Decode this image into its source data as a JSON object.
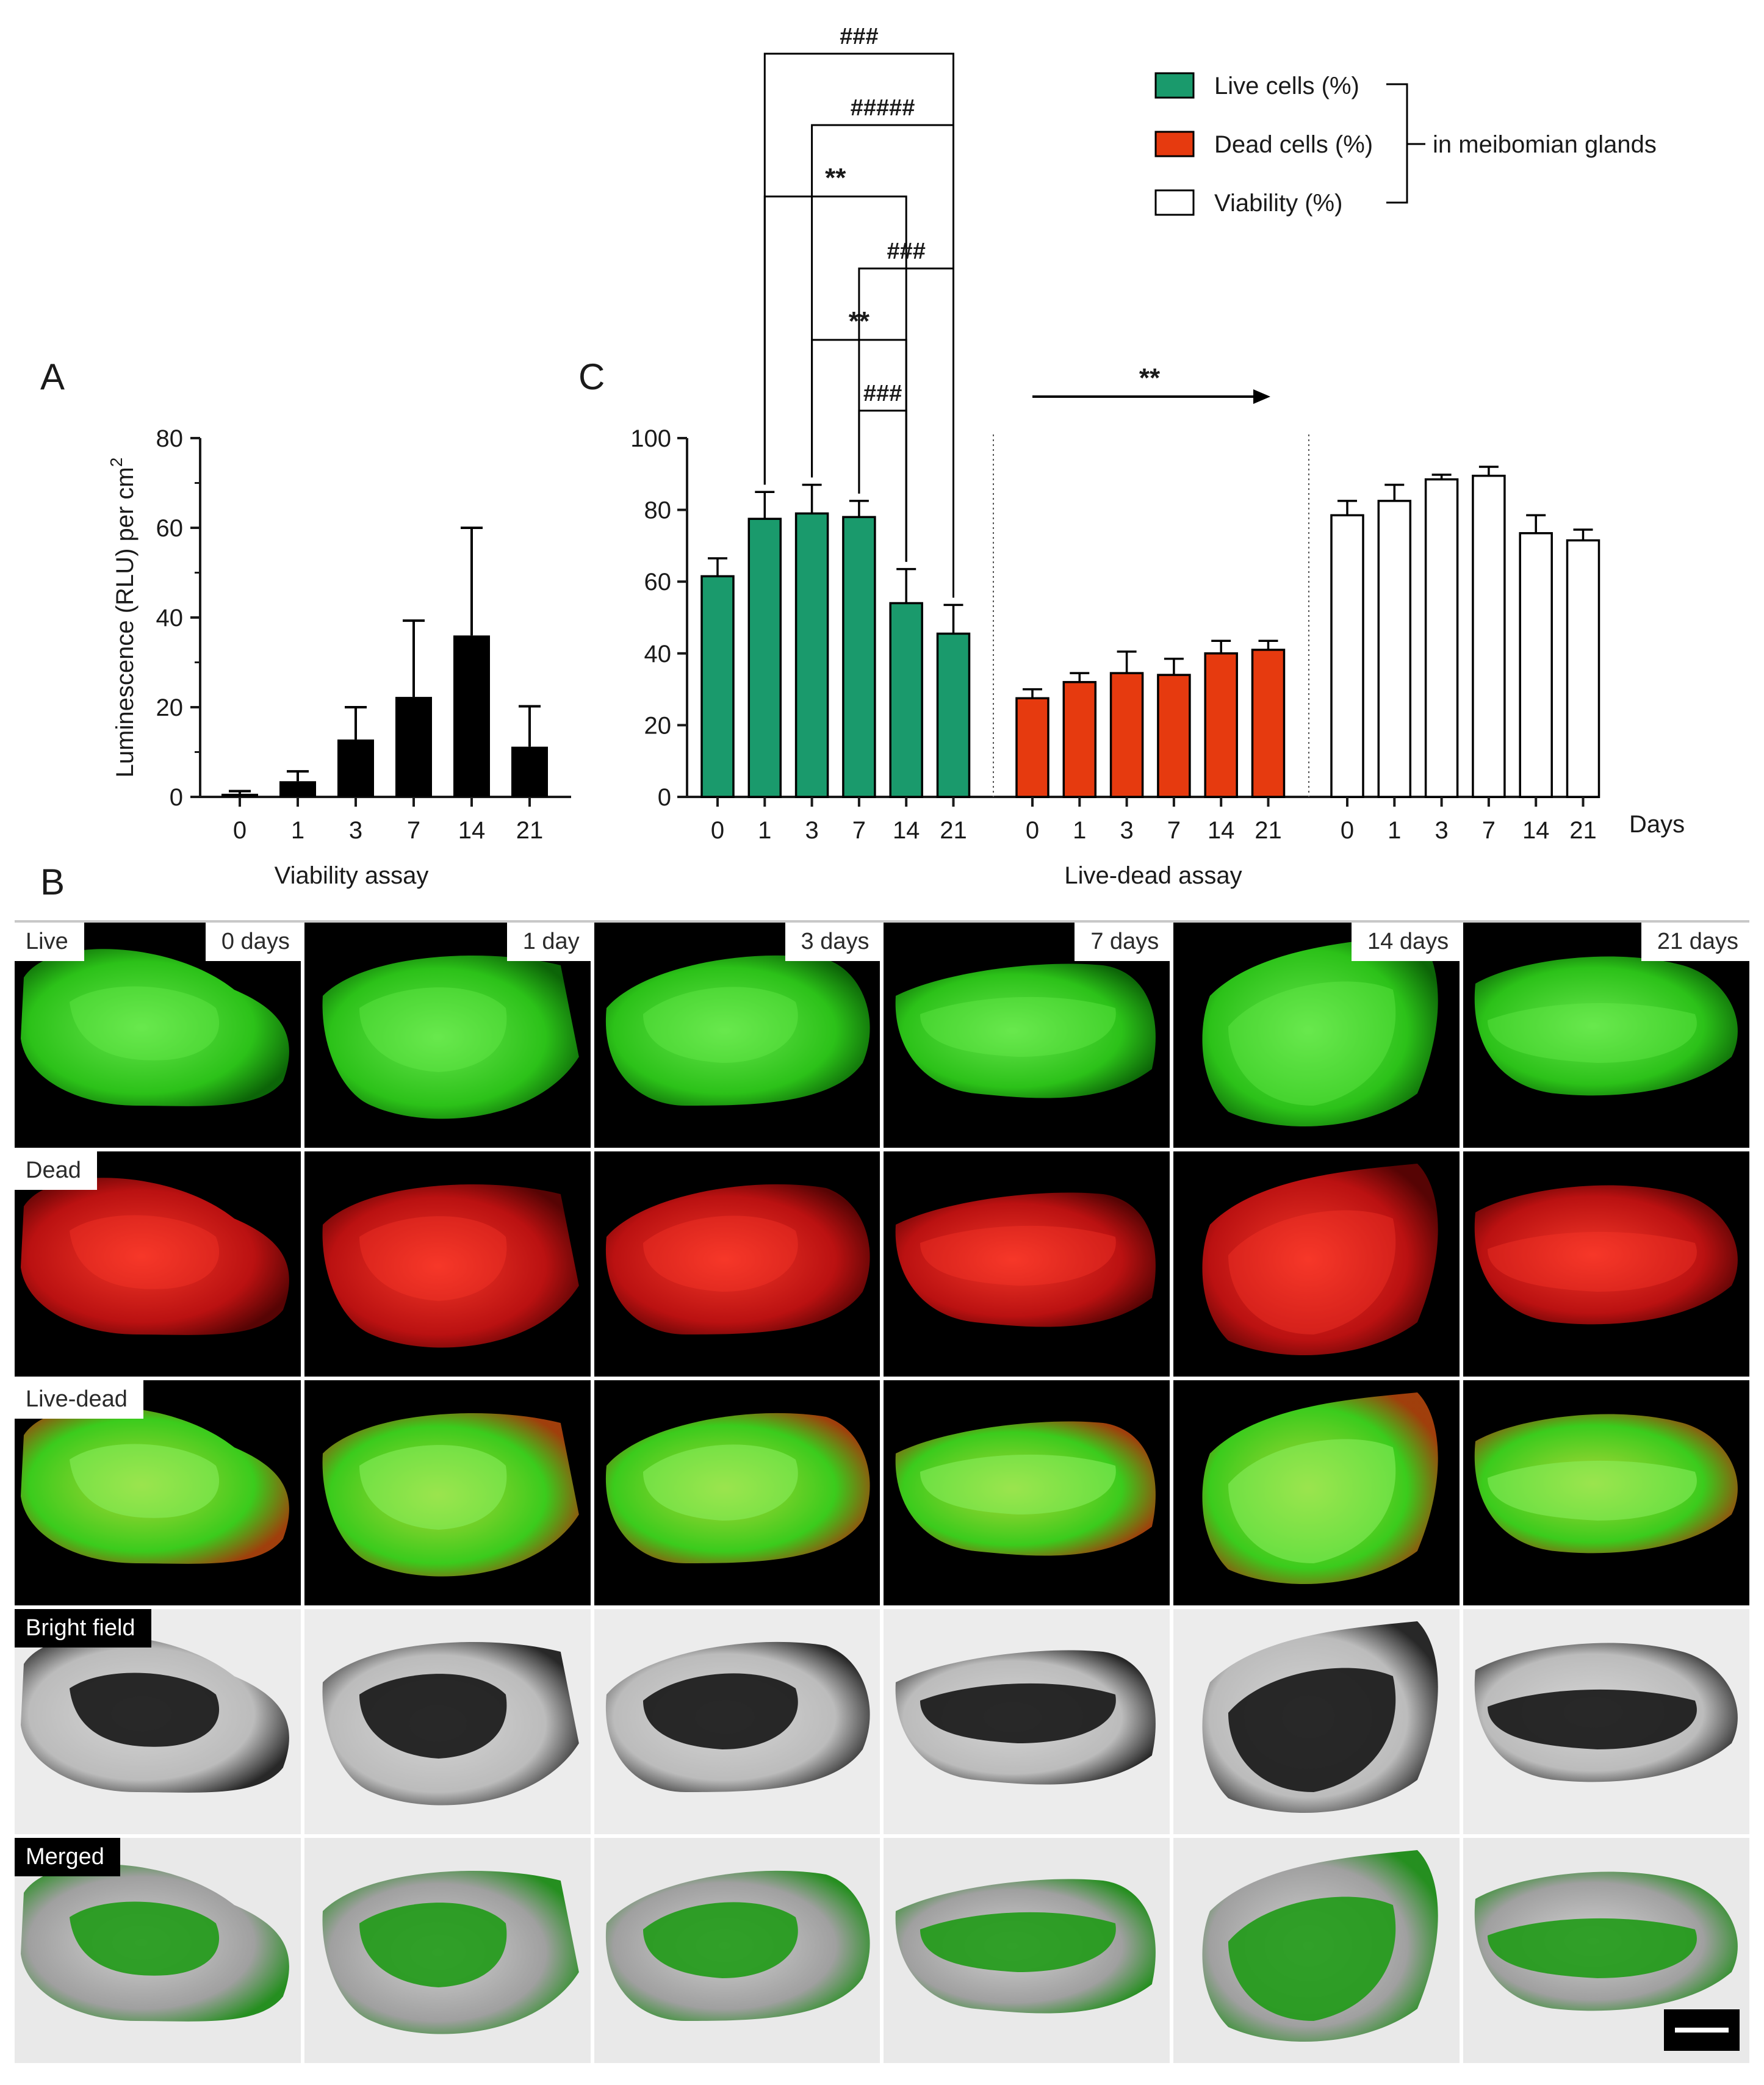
{
  "panel_letters": {
    "a": "A",
    "b": "B",
    "c": "C"
  },
  "chart_data": [
    {
      "id": "A",
      "type": "bar",
      "title": "",
      "xlabel": "Viability assay",
      "ylabel": "Luminescence (RLU) per cm",
      "ylabel_sup": "2",
      "categories": [
        "0",
        "1",
        "3",
        "7",
        "14",
        "21"
      ],
      "values": [
        0.7,
        3.5,
        12.8,
        22.3,
        36,
        11.2
      ],
      "errors": [
        0.6,
        2.2,
        7.2,
        17,
        24,
        9
      ],
      "ylim": [
        0,
        80
      ],
      "yticks": [
        "0",
        "20",
        "40",
        "60",
        "80"
      ],
      "color": "#000000"
    },
    {
      "id": "C",
      "type": "bar",
      "title": "",
      "xlabel": "Live-dead assay",
      "x_unit_label": "Days",
      "ylim": [
        0,
        100
      ],
      "yticks": [
        "0",
        "20",
        "40",
        "60",
        "80",
        "100"
      ],
      "series": [
        {
          "name": "Live cells (%)",
          "color": "#1a9a6c",
          "categories": [
            "0",
            "1",
            "3",
            "7",
            "14",
            "21"
          ],
          "values": [
            61.5,
            77.5,
            79,
            78,
            54,
            45.5
          ],
          "errors": [
            5,
            7.5,
            8,
            4.5,
            9.5,
            8
          ]
        },
        {
          "name": "Dead cells (%)",
          "color": "#e63a0f",
          "categories": [
            "0",
            "1",
            "3",
            "7",
            "14",
            "21"
          ],
          "values": [
            27.5,
            32,
            34.5,
            34,
            40,
            41
          ],
          "errors": [
            2.5,
            2.5,
            6,
            4.5,
            3.5,
            2.5
          ]
        },
        {
          "name": "Viability (%)",
          "color": "#ffffff",
          "categories": [
            "0",
            "1",
            "3",
            "7",
            "14",
            "21"
          ],
          "values": [
            78.5,
            82.5,
            88.5,
            89.5,
            73.5,
            71.5
          ],
          "errors": [
            4,
            4.5,
            1.3,
            2.5,
            5,
            3
          ]
        }
      ],
      "legend_group_label": "in meibomian glands",
      "legend_placement": "top-right",
      "significance": [
        {
          "label": "###",
          "from": "1",
          "to": "21"
        },
        {
          "label": "#####",
          "from": "3",
          "to": "21"
        },
        {
          "label": "**",
          "from": "1",
          "to": "14"
        },
        {
          "label": "###",
          "from": "7",
          "to": "21"
        },
        {
          "label": "**",
          "from": "3",
          "to": "14"
        },
        {
          "label": "###",
          "from": "7",
          "to": "14"
        }
      ],
      "trend_arrow_label": "**"
    }
  ],
  "image_grid": {
    "columns": [
      "0 days",
      "1 day",
      "3 days",
      "7 days",
      "14 days",
      "21 days"
    ],
    "rows": [
      {
        "label": "Live",
        "style": "live"
      },
      {
        "label": "Dead",
        "style": "dead"
      },
      {
        "label": "Live-dead",
        "style": "merge"
      },
      {
        "label": "Bright field",
        "style": "bright"
      },
      {
        "label": "Merged",
        "style": "merged"
      }
    ]
  }
}
